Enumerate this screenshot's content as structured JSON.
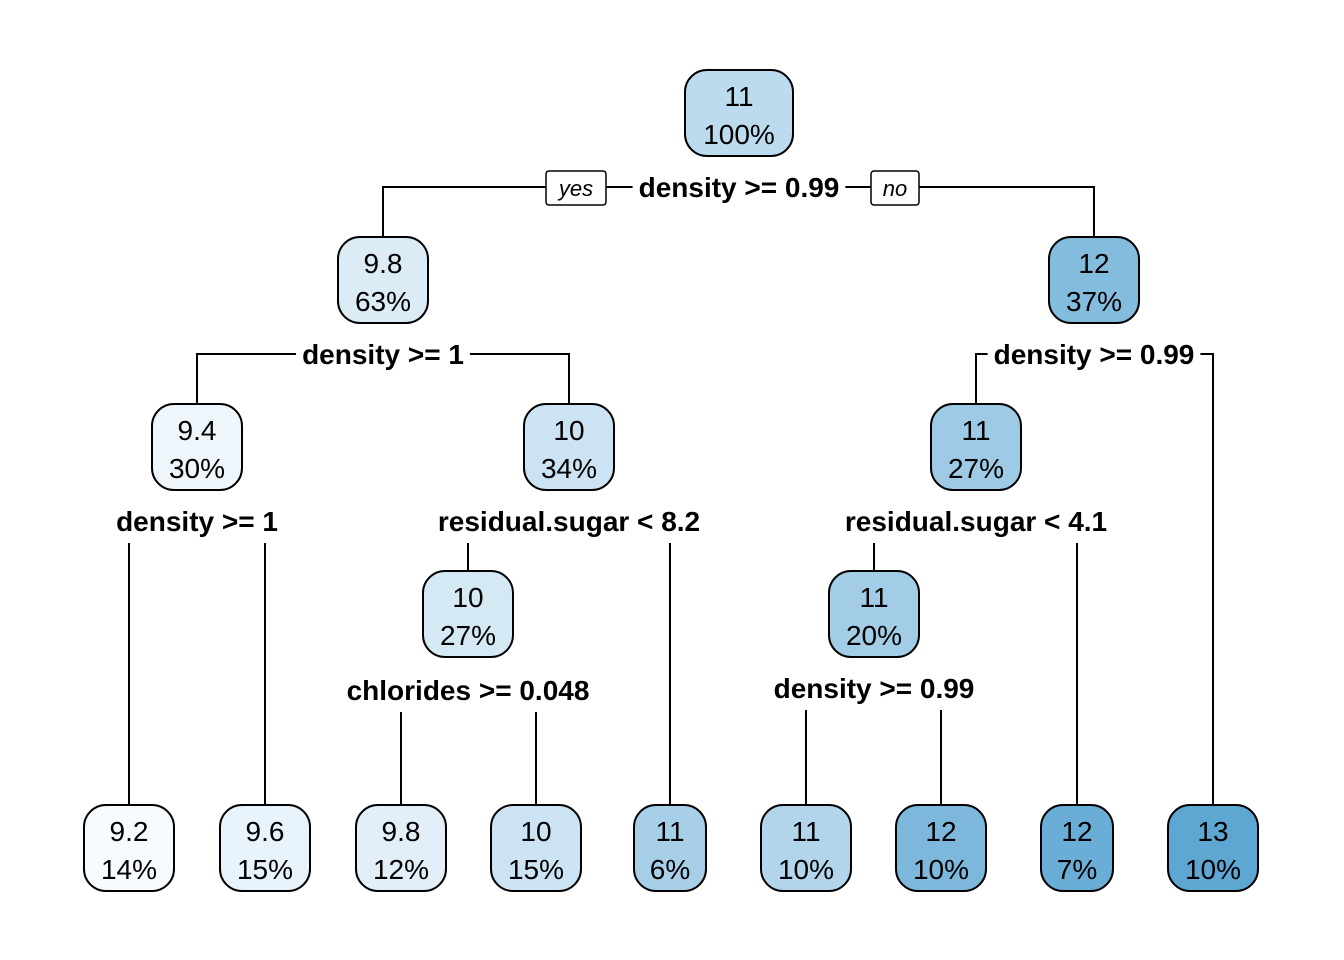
{
  "branch_labels": {
    "yes": "yes",
    "no": "no"
  },
  "palette": {
    "light": "#f7fbff",
    "dark": "#5ea7d3"
  },
  "nodes": [
    {
      "id": "root",
      "value": "11",
      "percent": "100%",
      "shade": 0.38,
      "split": "density >= 0.99"
    },
    {
      "id": "n2",
      "value": "9.8",
      "percent": "63%",
      "shade": 0.18,
      "split": "density >= 1"
    },
    {
      "id": "n3",
      "value": "12",
      "percent": "37%",
      "shade": 0.75,
      "split": "density >= 0.99"
    },
    {
      "id": "n4",
      "value": "9.4",
      "percent": "30%",
      "shade": 0.06,
      "split": "density >= 1"
    },
    {
      "id": "n5",
      "value": "10",
      "percent": "34%",
      "shade": 0.28,
      "split": "residual.sugar < 8.2"
    },
    {
      "id": "n6",
      "value": "11",
      "percent": "27%",
      "shade": 0.58,
      "split": "residual.sugar < 4.1"
    },
    {
      "id": "n10",
      "value": "10",
      "percent": "27%",
      "shade": 0.22,
      "split": "chlorides >= 0.048"
    },
    {
      "id": "n12",
      "value": "11",
      "percent": "20%",
      "shade": 0.55,
      "split": "density >= 0.99"
    },
    {
      "id": "l1",
      "value": "9.2",
      "percent": "14%",
      "shade": 0.0
    },
    {
      "id": "l2",
      "value": "9.6",
      "percent": "15%",
      "shade": 0.1
    },
    {
      "id": "l3",
      "value": "9.8",
      "percent": "12%",
      "shade": 0.14
    },
    {
      "id": "l4",
      "value": "10",
      "percent": "15%",
      "shade": 0.28
    },
    {
      "id": "l5",
      "value": "11",
      "percent": "6%",
      "shade": 0.52
    },
    {
      "id": "l6",
      "value": "11",
      "percent": "10%",
      "shade": 0.45
    },
    {
      "id": "l7",
      "value": "12",
      "percent": "10%",
      "shade": 0.8
    },
    {
      "id": "l8",
      "value": "12",
      "percent": "7%",
      "shade": 0.92
    },
    {
      "id": "l9",
      "value": "13",
      "percent": "10%",
      "shade": 1.0
    }
  ],
  "edges": [
    {
      "parent": "root",
      "children": [
        "n2",
        "n3"
      ]
    },
    {
      "parent": "n2",
      "children": [
        "n4",
        "n5"
      ]
    },
    {
      "parent": "n3",
      "children": [
        "n6",
        "l9"
      ]
    },
    {
      "parent": "n4",
      "children": [
        "l1",
        "l2"
      ]
    },
    {
      "parent": "n5",
      "children": [
        "n10",
        "l5"
      ]
    },
    {
      "parent": "n6",
      "children": [
        "n12",
        "l8"
      ]
    },
    {
      "parent": "n10",
      "children": [
        "l3",
        "l4"
      ]
    },
    {
      "parent": "n12",
      "children": [
        "l6",
        "l7"
      ]
    }
  ]
}
